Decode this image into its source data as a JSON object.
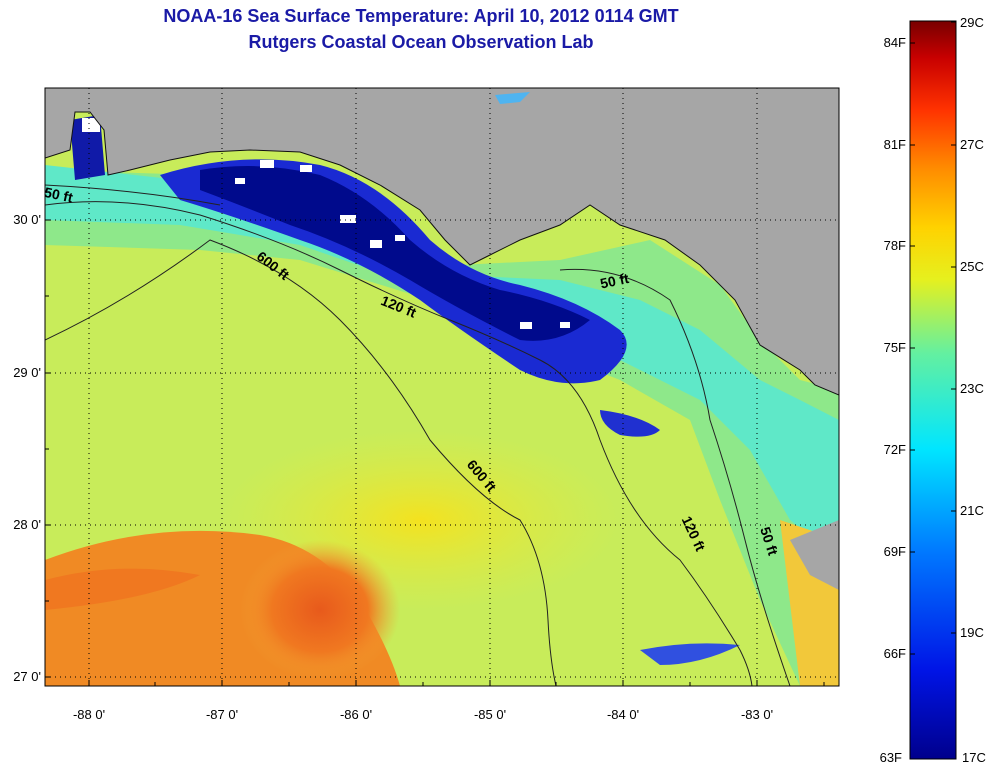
{
  "title": "NOAA-16 Sea Surface Temperature:  April 10, 2012 0114 GMT",
  "subtitle": "Rutgers Coastal Ocean Observation Lab",
  "lon_ticks": [
    "-88 0'",
    "-87 0'",
    "-86 0'",
    "-85 0'",
    "-84 0'",
    "-83 0'"
  ],
  "lat_ticks": [
    "30 0'",
    "29 0'",
    "28 0'",
    "27 0'"
  ],
  "contours": [
    "50 ft",
    "600 ft",
    "120 ft",
    "50 ft",
    "600 ft",
    "120 ft",
    "50 ft"
  ],
  "colorbar": {
    "fahrenheit": [
      "84F",
      "81F",
      "78F",
      "75F",
      "72F",
      "69F",
      "66F",
      "63F"
    ],
    "celsius": [
      "29C",
      "27C",
      "25C",
      "23C",
      "21C",
      "19C",
      "17C"
    ]
  },
  "colors": {
    "land": "#a6a6a6",
    "title": "#1a1aa6",
    "cold": "#000a8c",
    "warm": "#e6501e"
  }
}
